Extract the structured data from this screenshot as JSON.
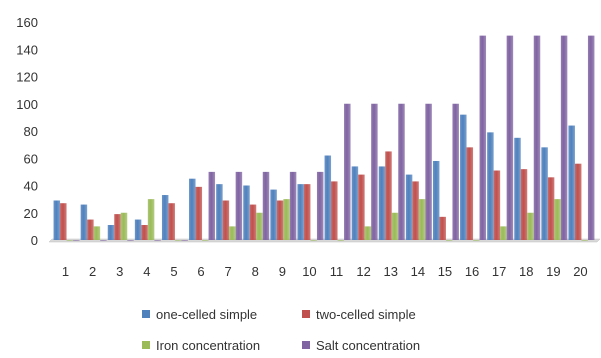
{
  "chart_data": {
    "type": "bar",
    "title": "",
    "xlabel": "",
    "ylabel": "",
    "ylim": [
      0,
      160
    ],
    "yticks": [
      0,
      20,
      40,
      60,
      80,
      100,
      120,
      140,
      160
    ],
    "grid": false,
    "legend_position": "bottom",
    "categories": [
      "1",
      "2",
      "3",
      "4",
      "5",
      "6",
      "7",
      "8",
      "9",
      "10",
      "11",
      "12",
      "13",
      "14",
      "15",
      "16",
      "17",
      "18",
      "19",
      "20"
    ],
    "series": [
      {
        "name": "one-celled simple",
        "color": "#4F81BD",
        "values": [
          29,
          26,
          11,
          15,
          33,
          45,
          41,
          40,
          37,
          41,
          62,
          54,
          54,
          48,
          58,
          92,
          79,
          75,
          68,
          84
        ]
      },
      {
        "name": "two-celled simple",
        "color": "#C0504D",
        "values": [
          27,
          15,
          19,
          11,
          27,
          39,
          29,
          26,
          29,
          41,
          43,
          48,
          65,
          43,
          17,
          68,
          51,
          52,
          46,
          56
        ]
      },
      {
        "name": "Iron concentration",
        "color": "#9BBB59",
        "values": [
          0,
          10,
          20,
          30,
          0,
          0,
          10,
          20,
          30,
          0,
          0,
          10,
          20,
          30,
          0,
          0,
          10,
          20,
          30,
          0
        ]
      },
      {
        "name": "Salt concentration",
        "color": "#8064A2",
        "values": [
          0,
          0,
          0,
          0,
          0,
          50,
          50,
          50,
          50,
          50,
          100,
          100,
          100,
          100,
          100,
          150,
          150,
          150,
          150,
          150
        ]
      }
    ]
  }
}
